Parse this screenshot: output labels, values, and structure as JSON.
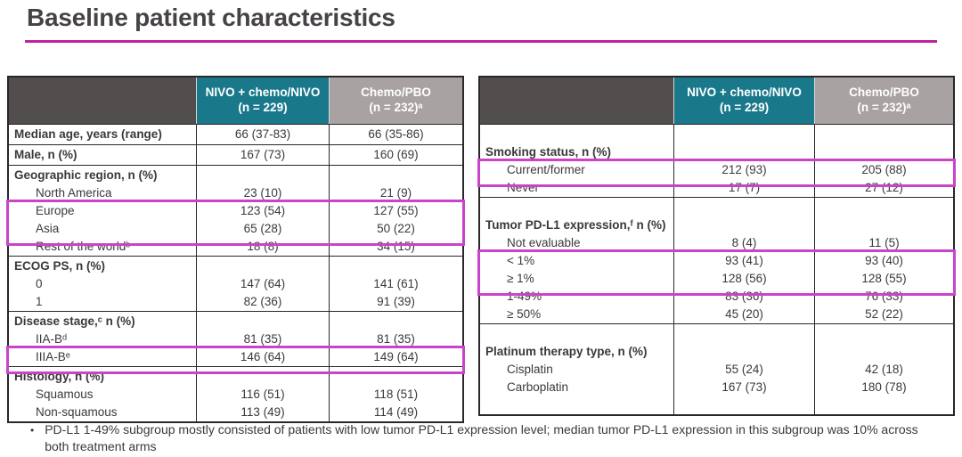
{
  "title": "Baseline patient characteristics",
  "bullet": "•",
  "footnote": "PD-L1 1-49% subgroup mostly consisted of patients with low tumor PD-L1 expression level; median tumor PD-L1 expression in this subgroup was 10% across both treatment arms",
  "colors": {
    "accent_magenta_rule": "#c0209e",
    "highlight_box": "#c944c9",
    "arm1_header_teal": "#19798b",
    "arm2_header_gray": "#a9a2a2",
    "stub_header_dark": "#534e4e",
    "border": "#2b2728",
    "text": "#3c3838"
  },
  "columns": {
    "arm1": {
      "l1": "NIVO + chemo/NIVO",
      "l2": "(n = 229)"
    },
    "arm2": {
      "l1": "Chemo/PBO",
      "l2": "(n = 232)ᵃ"
    }
  },
  "tables": {
    "left": {
      "rows": [
        {
          "type": "single",
          "label": "Median age, years (range)",
          "v1": "66 (37-83)",
          "v2": "66 (35-86)"
        },
        {
          "type": "single",
          "label": "Male, n (%)",
          "v1": "167 (73)",
          "v2": "160 (69)",
          "sectionStart": true
        },
        {
          "type": "group",
          "label": "Geographic region, n (%)",
          "sectionStart": true
        },
        {
          "type": "item",
          "label": "North America",
          "v1": "23 (10)",
          "v2": "21 (9)"
        },
        {
          "type": "item",
          "label": "Europe",
          "v1": "123 (54)",
          "v2": "127 (55)",
          "highlight": true
        },
        {
          "type": "item",
          "label": "Asia",
          "v1": "65 (28)",
          "v2": "50 (22)",
          "highlight": true
        },
        {
          "type": "item",
          "label": "Rest of the worldᵇ",
          "v1": "18 (8)",
          "v2": "34 (15)"
        },
        {
          "type": "group",
          "label": "ECOG PS, n (%)",
          "sectionStart": true
        },
        {
          "type": "item",
          "label": "0",
          "v1": "147 (64)",
          "v2": "141 (61)"
        },
        {
          "type": "item",
          "label": "1",
          "v1": "82 (36)",
          "v2": "91 (39)"
        },
        {
          "type": "group",
          "label": "Disease stage,ᶜ n (%)",
          "sectionStart": true
        },
        {
          "type": "item",
          "label": "IIA-Bᵈ",
          "v1": "81 (35)",
          "v2": "81 (35)"
        },
        {
          "type": "item",
          "label": "IIIA-Bᵉ",
          "v1": "146 (64)",
          "v2": "149 (64)",
          "highlight": true
        },
        {
          "type": "group",
          "label": "Histology, n (%)",
          "sectionStart": true
        },
        {
          "type": "item",
          "label": "Squamous",
          "v1": "116 (51)",
          "v2": "118 (51)"
        },
        {
          "type": "item",
          "label": "Non-squamous",
          "v1": "113 (49)",
          "v2": "114 (49)"
        }
      ]
    },
    "right": {
      "rows": [
        {
          "type": "spacer"
        },
        {
          "type": "group",
          "label": "Smoking status, n (%)"
        },
        {
          "type": "item",
          "label": "Current/former",
          "v1": "212 (93)",
          "v2": "205 (88)",
          "highlight": true
        },
        {
          "type": "item",
          "label": "Never",
          "v1": "17 (7)",
          "v2": "27 (12)"
        },
        {
          "type": "spacer",
          "sectionStart": true
        },
        {
          "type": "group",
          "label": "Tumor PD-L1 expression,ᶠ n (%)"
        },
        {
          "type": "item",
          "label": "Not evaluable",
          "v1": "8 (4)",
          "v2": "11 (5)"
        },
        {
          "type": "item",
          "label": "< 1%",
          "v1": "93 (41)",
          "v2": "93 (40)",
          "highlight": true
        },
        {
          "type": "item",
          "label": "≥ 1%",
          "v1": "128 (56)",
          "v2": "128 (55)",
          "highlight": true
        },
        {
          "type": "item",
          "label": "1-49%",
          "v1": "83 (36)",
          "v2": "76 (33)"
        },
        {
          "type": "item",
          "label": "≥ 50%",
          "v1": "45 (20)",
          "v2": "52 (22)"
        },
        {
          "type": "spacer",
          "sectionStart": true
        },
        {
          "type": "group",
          "label": "Platinum therapy type, n (%)"
        },
        {
          "type": "item",
          "label": "Cisplatin",
          "v1": "55 (24)",
          "v2": "42 (18)"
        },
        {
          "type": "item",
          "label": "Carboplatin",
          "v1": "167 (73)",
          "v2": "180 (78)"
        },
        {
          "type": "spacer"
        }
      ]
    }
  }
}
